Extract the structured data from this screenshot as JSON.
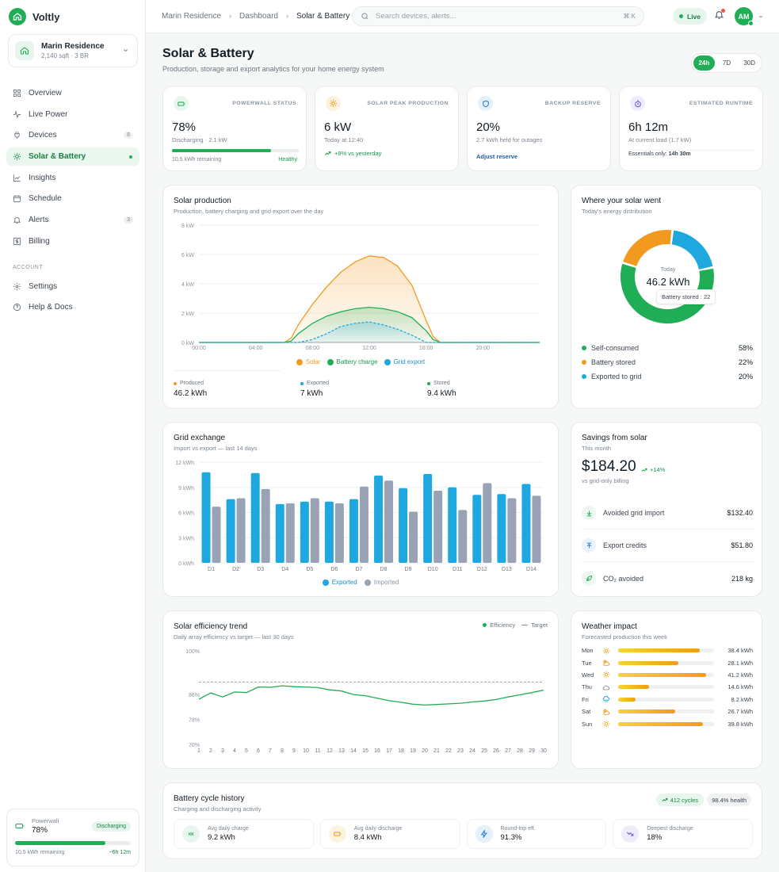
{
  "app": {
    "name": "Voltly"
  },
  "home": {
    "name": "Marin Residence",
    "meta": "2,140 sqft · 3 BR"
  },
  "nav": {
    "items": [
      {
        "label": "Overview",
        "icon": "grid-icon"
      },
      {
        "label": "Live Power",
        "icon": "pulse-icon"
      },
      {
        "label": "Devices",
        "icon": "plug-icon",
        "badge": "8"
      },
      {
        "label": "Solar & Battery",
        "icon": "sun-icon",
        "active": true
      },
      {
        "label": "Insights",
        "icon": "chart-icon"
      },
      {
        "label": "Schedule",
        "icon": "calendar-icon"
      },
      {
        "label": "Alerts",
        "icon": "bell-icon",
        "badge": "3"
      },
      {
        "label": "Billing",
        "icon": "dollar-icon"
      }
    ],
    "section": "ACCOUNT",
    "account": [
      {
        "label": "Settings",
        "icon": "gear-icon"
      },
      {
        "label": "Help & Docs",
        "icon": "help-icon"
      }
    ]
  },
  "sidebar_battery": {
    "label": "Powerwall",
    "value": "78%",
    "status": "Discharging",
    "remaining": "10.5 kWh remaining",
    "time": "~6h 12m",
    "level": 0.78
  },
  "topbar": {
    "crumbs": [
      "Marin Residence",
      "Dashboard",
      "Solar & Battery"
    ],
    "search_placeholder": "Search devices, alerts...",
    "kbd": "⌘ K",
    "live": "Live",
    "avatar": "AM"
  },
  "page": {
    "title": "Solar & Battery",
    "subtitle": "Production, storage and export analytics for your home energy system",
    "ranges": [
      "24h",
      "7D",
      "30D"
    ],
    "active_range": "24h"
  },
  "kpis": [
    {
      "label": "POWERWALL STATUS",
      "value": "78%",
      "sub": "Discharging · 2.1 kW",
      "footer_left": "10.5 kWh remaining",
      "footer_right": "Healthy",
      "level": 0.78,
      "color": "#1fae55"
    },
    {
      "label": "SOLAR PEAK PRODUCTION",
      "value": "6 kW",
      "sub": "Today at 12:40",
      "delta": "+8% vs yesterday",
      "color": "#f29a1f"
    },
    {
      "label": "BACKUP RESERVE",
      "value": "20%",
      "sub": "2.7 kWh held for outages",
      "link": "Adjust reserve",
      "color": "#1d7fd6"
    },
    {
      "label": "ESTIMATED RUNTIME",
      "value": "6h 12m",
      "sub": "At current load (1.7 kW)",
      "note_label": "Essentials only:",
      "note_value": "14h 30m",
      "color": "#6b5bd6"
    }
  ],
  "solar_chart": {
    "title": "Solar production",
    "subtitle": "Production, battery charging and grid export over the day",
    "legend": [
      "Solar",
      "Battery charge",
      "Grid export"
    ],
    "stats": [
      {
        "label": "Produced",
        "value": "46.2 kWh",
        "color": "#f29a1f"
      },
      {
        "label": "Exported",
        "value": "7 kWh",
        "color": "#1fa7e0"
      },
      {
        "label": "Stored",
        "value": "9.4 kWh",
        "color": "#1fae55"
      }
    ]
  },
  "distribution": {
    "title": "Where your solar went",
    "subtitle": "Today's energy distribution",
    "center_label": "Today",
    "center_value": "46.2 kWh",
    "tooltip": "Battery stored : 22",
    "items": [
      {
        "label": "Self-consumed",
        "value": "58%",
        "color": "#1fae55"
      },
      {
        "label": "Battery stored",
        "value": "22%",
        "color": "#f29a1f"
      },
      {
        "label": "Exported to grid",
        "value": "20%",
        "color": "#1fa7e0"
      }
    ]
  },
  "grid_chart": {
    "title": "Grid exchange",
    "subtitle": "Import vs export — last 14 days",
    "legend": [
      "Exported",
      "Imported"
    ]
  },
  "savings": {
    "title": "Savings from solar",
    "subtitle": "This month",
    "value": "$184.20",
    "delta": "+14%",
    "note": "vs grid-only billing",
    "rows": [
      {
        "label": "Avoided grid import",
        "value": "$132.40",
        "icon": "download-icon"
      },
      {
        "label": "Export credits",
        "value": "$51.80",
        "icon": "upload-icon"
      },
      {
        "label": "CO₂ avoided",
        "value": "218 kg",
        "icon": "leaf-icon"
      }
    ]
  },
  "efficiency": {
    "title": "Solar efficiency trend",
    "subtitle": "Daily array efficiency vs target — last 30 days",
    "legend": [
      "Efficiency",
      "Target"
    ]
  },
  "weather": {
    "title": "Weather impact",
    "subtitle": "Forecasted production this week",
    "days": [
      {
        "day": "Mon",
        "value": "38.4 kWh",
        "kwh": 38.4,
        "icon": "sun-icon"
      },
      {
        "day": "Tue",
        "value": "28.1 kWh",
        "kwh": 28.1,
        "icon": "partly-cloudy-icon"
      },
      {
        "day": "Wed",
        "value": "41.2 kWh",
        "kwh": 41.2,
        "icon": "sun-icon"
      },
      {
        "day": "Thu",
        "value": "14.6 kWh",
        "kwh": 14.6,
        "icon": "cloud-icon"
      },
      {
        "day": "Fri",
        "value": "8.2 kWh",
        "kwh": 8.2,
        "icon": "rain-icon"
      },
      {
        "day": "Sat",
        "value": "26.7 kWh",
        "kwh": 26.7,
        "icon": "partly-cloudy-icon"
      },
      {
        "day": "Sun",
        "value": "39.8 kWh",
        "kwh": 39.8,
        "icon": "sun-icon"
      }
    ]
  },
  "cycles": {
    "title": "Battery cycle history",
    "subtitle": "Charging and discharging activity",
    "badge1": "412 cycles",
    "badge2": "98.4% health",
    "stats": [
      {
        "label": "Avg daily charge",
        "value": "9.2 kWh",
        "icon": "charge-icon",
        "color": "#1fae55"
      },
      {
        "label": "Avg daily discharge",
        "value": "8.4 kWh",
        "icon": "battery-icon",
        "color": "#f29a1f"
      },
      {
        "label": "Round-trip eff.",
        "value": "91.3%",
        "icon": "bolt-icon",
        "color": "#1d7fd6"
      },
      {
        "label": "Deepest discharge",
        "value": "18%",
        "icon": "trend-down-icon",
        "color": "#6b5bd6"
      }
    ]
  },
  "chart_data": [
    {
      "type": "area",
      "title": "Solar production",
      "ylabel": "kW",
      "ylim": [
        0,
        8
      ],
      "yticks": [
        "0 kW",
        "2 kW",
        "4 kW",
        "6 kW",
        "8 kW"
      ],
      "xticks": [
        "00:00",
        "04:00",
        "08:00",
        "12:00",
        "16:00",
        "20:00"
      ],
      "x": [
        0,
        1,
        2,
        3,
        4,
        5,
        6,
        6.5,
        7,
        8,
        9,
        10,
        11,
        12,
        13,
        14,
        15,
        16,
        16.5,
        17,
        18,
        19,
        20,
        21,
        22,
        23
      ],
      "series": [
        {
          "name": "Solar",
          "values": [
            0,
            0,
            0,
            0,
            0,
            0,
            0,
            0.3,
            1.2,
            2.6,
            3.8,
            4.8,
            5.5,
            5.9,
            5.8,
            5.2,
            3.9,
            1.5,
            0.4,
            0,
            0,
            0,
            0,
            0,
            0,
            0
          ]
        },
        {
          "name": "Battery charge",
          "values": [
            0,
            0,
            0,
            0,
            0,
            0,
            0,
            0.1,
            0.6,
            1.3,
            1.8,
            2.1,
            2.3,
            2.4,
            2.3,
            2.1,
            1.7,
            0.8,
            0.2,
            0,
            0,
            0,
            0,
            0,
            0,
            0
          ]
        },
        {
          "name": "Grid export",
          "values": [
            0,
            0,
            0,
            0,
            0,
            0,
            0,
            0,
            0,
            0.2,
            0.6,
            1.1,
            1.3,
            1.4,
            1.2,
            0.9,
            0.5,
            0,
            0,
            0,
            0,
            0,
            0,
            0,
            0,
            0
          ]
        }
      ]
    },
    {
      "type": "pie",
      "title": "Where your solar went",
      "categories": [
        "Self-consumed",
        "Battery stored",
        "Exported to grid"
      ],
      "values": [
        58,
        22,
        20
      ]
    },
    {
      "type": "bar",
      "title": "Grid exchange",
      "categories": [
        "D1",
        "D2",
        "D3",
        "D4",
        "D5",
        "D6",
        "D7",
        "D8",
        "D9",
        "D10",
        "D11",
        "D12",
        "D13",
        "D14"
      ],
      "ylim": [
        0,
        12
      ],
      "yticks": [
        "0 kWh",
        "3 kWh",
        "6 kWh",
        "9 kWh",
        "12 kWh"
      ],
      "series": [
        {
          "name": "Exported",
          "values": [
            10.8,
            7.6,
            10.7,
            7.0,
            7.3,
            7.3,
            7.6,
            10.4,
            8.9,
            10.6,
            9.0,
            8.1,
            8.2,
            9.4
          ]
        },
        {
          "name": "Imported",
          "values": [
            6.7,
            7.7,
            8.8,
            7.1,
            7.7,
            7.1,
            9.1,
            9.8,
            6.1,
            8.6,
            6.3,
            9.5,
            7.7,
            8.0
          ]
        }
      ]
    },
    {
      "type": "line",
      "title": "Solar efficiency trend",
      "ylim": [
        70,
        100
      ],
      "yticks": [
        "70%",
        "78%",
        "86%",
        "100%"
      ],
      "x": [
        1,
        2,
        3,
        4,
        5,
        6,
        7,
        8,
        9,
        10,
        11,
        12,
        13,
        14,
        15,
        16,
        17,
        18,
        19,
        20,
        21,
        22,
        23,
        24,
        25,
        26,
        27,
        28,
        29,
        30
      ],
      "series": [
        {
          "name": "Efficiency",
          "values": [
            84.5,
            86.5,
            85.2,
            86.8,
            86.6,
            88.4,
            88.3,
            88.8,
            88.5,
            88.4,
            88.2,
            87.5,
            87.1,
            86.0,
            85.6,
            84.8,
            84.0,
            83.5,
            82.9,
            82.6,
            82.8,
            83.0,
            83.2,
            83.6,
            83.9,
            84.4,
            85.2,
            85.9,
            86.6,
            87.4
          ]
        },
        {
          "name": "Target",
          "values": [
            90,
            90,
            90,
            90,
            90,
            90,
            90,
            90,
            90,
            90,
            90,
            90,
            90,
            90,
            90,
            90,
            90,
            90,
            90,
            90,
            90,
            90,
            90,
            90,
            90,
            90,
            90,
            90,
            90,
            90
          ]
        }
      ]
    }
  ]
}
